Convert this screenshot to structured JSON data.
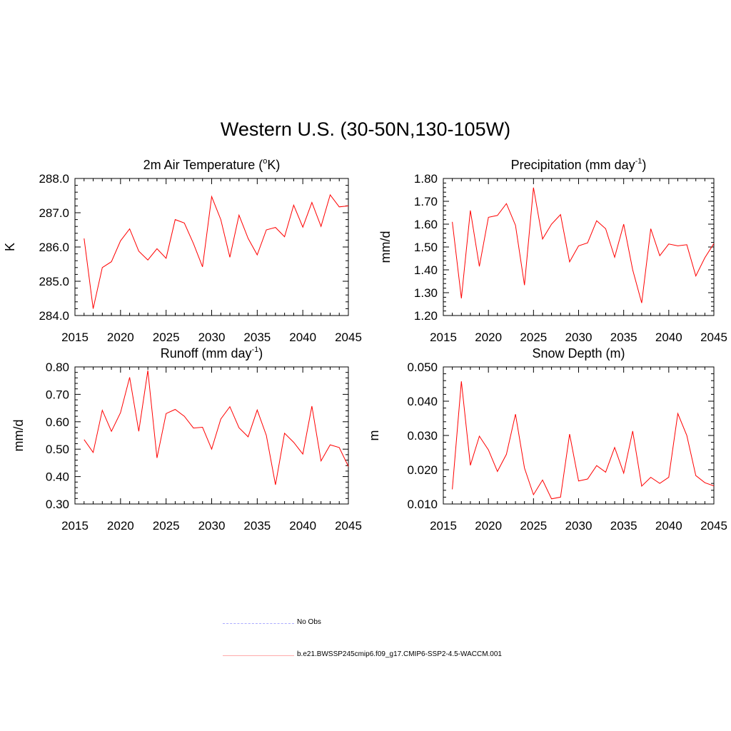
{
  "title": "Western U.S. (30-50N,130-105W)",
  "legend": {
    "obs_label": "No Obs",
    "obs_color": "#aaaaff",
    "model_label": "b.e21.BWSSP245cmip6.f09_g17.CMIP6-SSP2-4.5-WACCM.001",
    "model_color": "#ff0000"
  },
  "chart_data": [
    {
      "type": "line",
      "title": "2m Air Temperature (",
      "title_sup": "o",
      "title_after": "K)",
      "ylabel": "K",
      "xlim": [
        2015,
        2045
      ],
      "ylim": [
        284.0,
        288.0
      ],
      "y_ticks": [
        "284.0",
        "285.0",
        "286.0",
        "287.0",
        "288.0"
      ],
      "x_ticks": [
        "2015",
        "2020",
        "2025",
        "2030",
        "2035",
        "2040",
        "2045"
      ],
      "x": [
        2016,
        2017,
        2018,
        2019,
        2020,
        2021,
        2022,
        2023,
        2024,
        2025,
        2026,
        2027,
        2028,
        2029,
        2030,
        2031,
        2032,
        2033,
        2034,
        2035,
        2036,
        2037,
        2038,
        2039,
        2040,
        2041,
        2042,
        2043,
        2044,
        2045
      ],
      "series": [
        {
          "values": [
            286.25,
            284.2,
            285.4,
            285.57,
            286.18,
            286.53,
            285.88,
            285.62,
            285.95,
            285.67,
            286.8,
            286.7,
            286.1,
            285.42,
            287.47,
            286.8,
            285.7,
            286.93,
            286.25,
            285.77,
            286.5,
            286.57,
            286.3,
            287.22,
            286.58,
            287.3,
            286.6,
            287.52,
            287.17,
            287.2
          ],
          "color": "#ff0000"
        }
      ]
    },
    {
      "type": "line",
      "title": "Precipitation (mm day",
      "title_sup": "-1",
      "title_after": ")",
      "ylabel": "mm/d",
      "xlim": [
        2015,
        2045
      ],
      "ylim": [
        1.2,
        1.8
      ],
      "y_ticks": [
        "1.20",
        "1.30",
        "1.40",
        "1.50",
        "1.60",
        "1.70",
        "1.80"
      ],
      "x_ticks": [
        "2015",
        "2020",
        "2025",
        "2030",
        "2035",
        "2040",
        "2045"
      ],
      "x": [
        2016,
        2017,
        2018,
        2019,
        2020,
        2021,
        2022,
        2023,
        2024,
        2025,
        2026,
        2027,
        2028,
        2029,
        2030,
        2031,
        2032,
        2033,
        2034,
        2035,
        2036,
        2037,
        2038,
        2039,
        2040,
        2041,
        2042,
        2043,
        2044,
        2045
      ],
      "series": [
        {
          "values": [
            1.61,
            1.275,
            1.66,
            1.415,
            1.63,
            1.638,
            1.69,
            1.595,
            1.333,
            1.76,
            1.535,
            1.6,
            1.642,
            1.435,
            1.505,
            1.518,
            1.615,
            1.58,
            1.455,
            1.6,
            1.4,
            1.255,
            1.58,
            1.462,
            1.513,
            1.505,
            1.51,
            1.373,
            1.453,
            1.515
          ],
          "color": "#ff0000"
        }
      ]
    },
    {
      "type": "line",
      "title": "Runoff (mm day",
      "title_sup": "-1",
      "title_after": ")",
      "ylabel": "mm/d",
      "xlim": [
        2015,
        2045
      ],
      "ylim": [
        0.3,
        0.8
      ],
      "y_ticks": [
        "0.30",
        "0.40",
        "0.50",
        "0.60",
        "0.70",
        "0.80"
      ],
      "x_ticks": [
        "2015",
        "2020",
        "2025",
        "2030",
        "2035",
        "2040",
        "2045"
      ],
      "x": [
        2016,
        2017,
        2018,
        2019,
        2020,
        2021,
        2022,
        2023,
        2024,
        2025,
        2026,
        2027,
        2028,
        2029,
        2030,
        2031,
        2032,
        2033,
        2034,
        2035,
        2036,
        2037,
        2038,
        2039,
        2040,
        2041,
        2042,
        2043,
        2044,
        2045
      ],
      "series": [
        {
          "values": [
            0.535,
            0.488,
            0.642,
            0.565,
            0.633,
            0.762,
            0.565,
            0.787,
            0.468,
            0.63,
            0.645,
            0.62,
            0.577,
            0.58,
            0.5,
            0.61,
            0.655,
            0.578,
            0.545,
            0.643,
            0.55,
            0.37,
            0.558,
            0.525,
            0.482,
            0.657,
            0.457,
            0.516,
            0.506,
            0.437
          ],
          "color": "#ff0000"
        }
      ]
    },
    {
      "type": "line",
      "title": "Snow Depth (m)",
      "title_sup": "",
      "title_after": "",
      "ylabel": "m",
      "xlim": [
        2015,
        2045
      ],
      "ylim": [
        0.01,
        0.05
      ],
      "y_ticks": [
        "0.010",
        "0.020",
        "0.030",
        "0.040",
        "0.050"
      ],
      "x_ticks": [
        "2015",
        "2020",
        "2025",
        "2030",
        "2035",
        "2040",
        "2045"
      ],
      "x": [
        2016,
        2017,
        2018,
        2019,
        2020,
        2021,
        2022,
        2023,
        2024,
        2025,
        2026,
        2027,
        2028,
        2029,
        2030,
        2031,
        2032,
        2033,
        2034,
        2035,
        2036,
        2037,
        2038,
        2039,
        2040,
        2041,
        2042,
        2043,
        2044,
        2045
      ],
      "series": [
        {
          "values": [
            0.0143,
            0.0458,
            0.0213,
            0.0298,
            0.0258,
            0.0195,
            0.0245,
            0.0362,
            0.0205,
            0.0127,
            0.017,
            0.0115,
            0.012,
            0.0304,
            0.0167,
            0.0173,
            0.0212,
            0.0193,
            0.0265,
            0.019,
            0.0313,
            0.0152,
            0.0178,
            0.016,
            0.0178,
            0.0364,
            0.03,
            0.0183,
            0.0162,
            0.0153
          ],
          "color": "#ff0000"
        }
      ]
    }
  ]
}
